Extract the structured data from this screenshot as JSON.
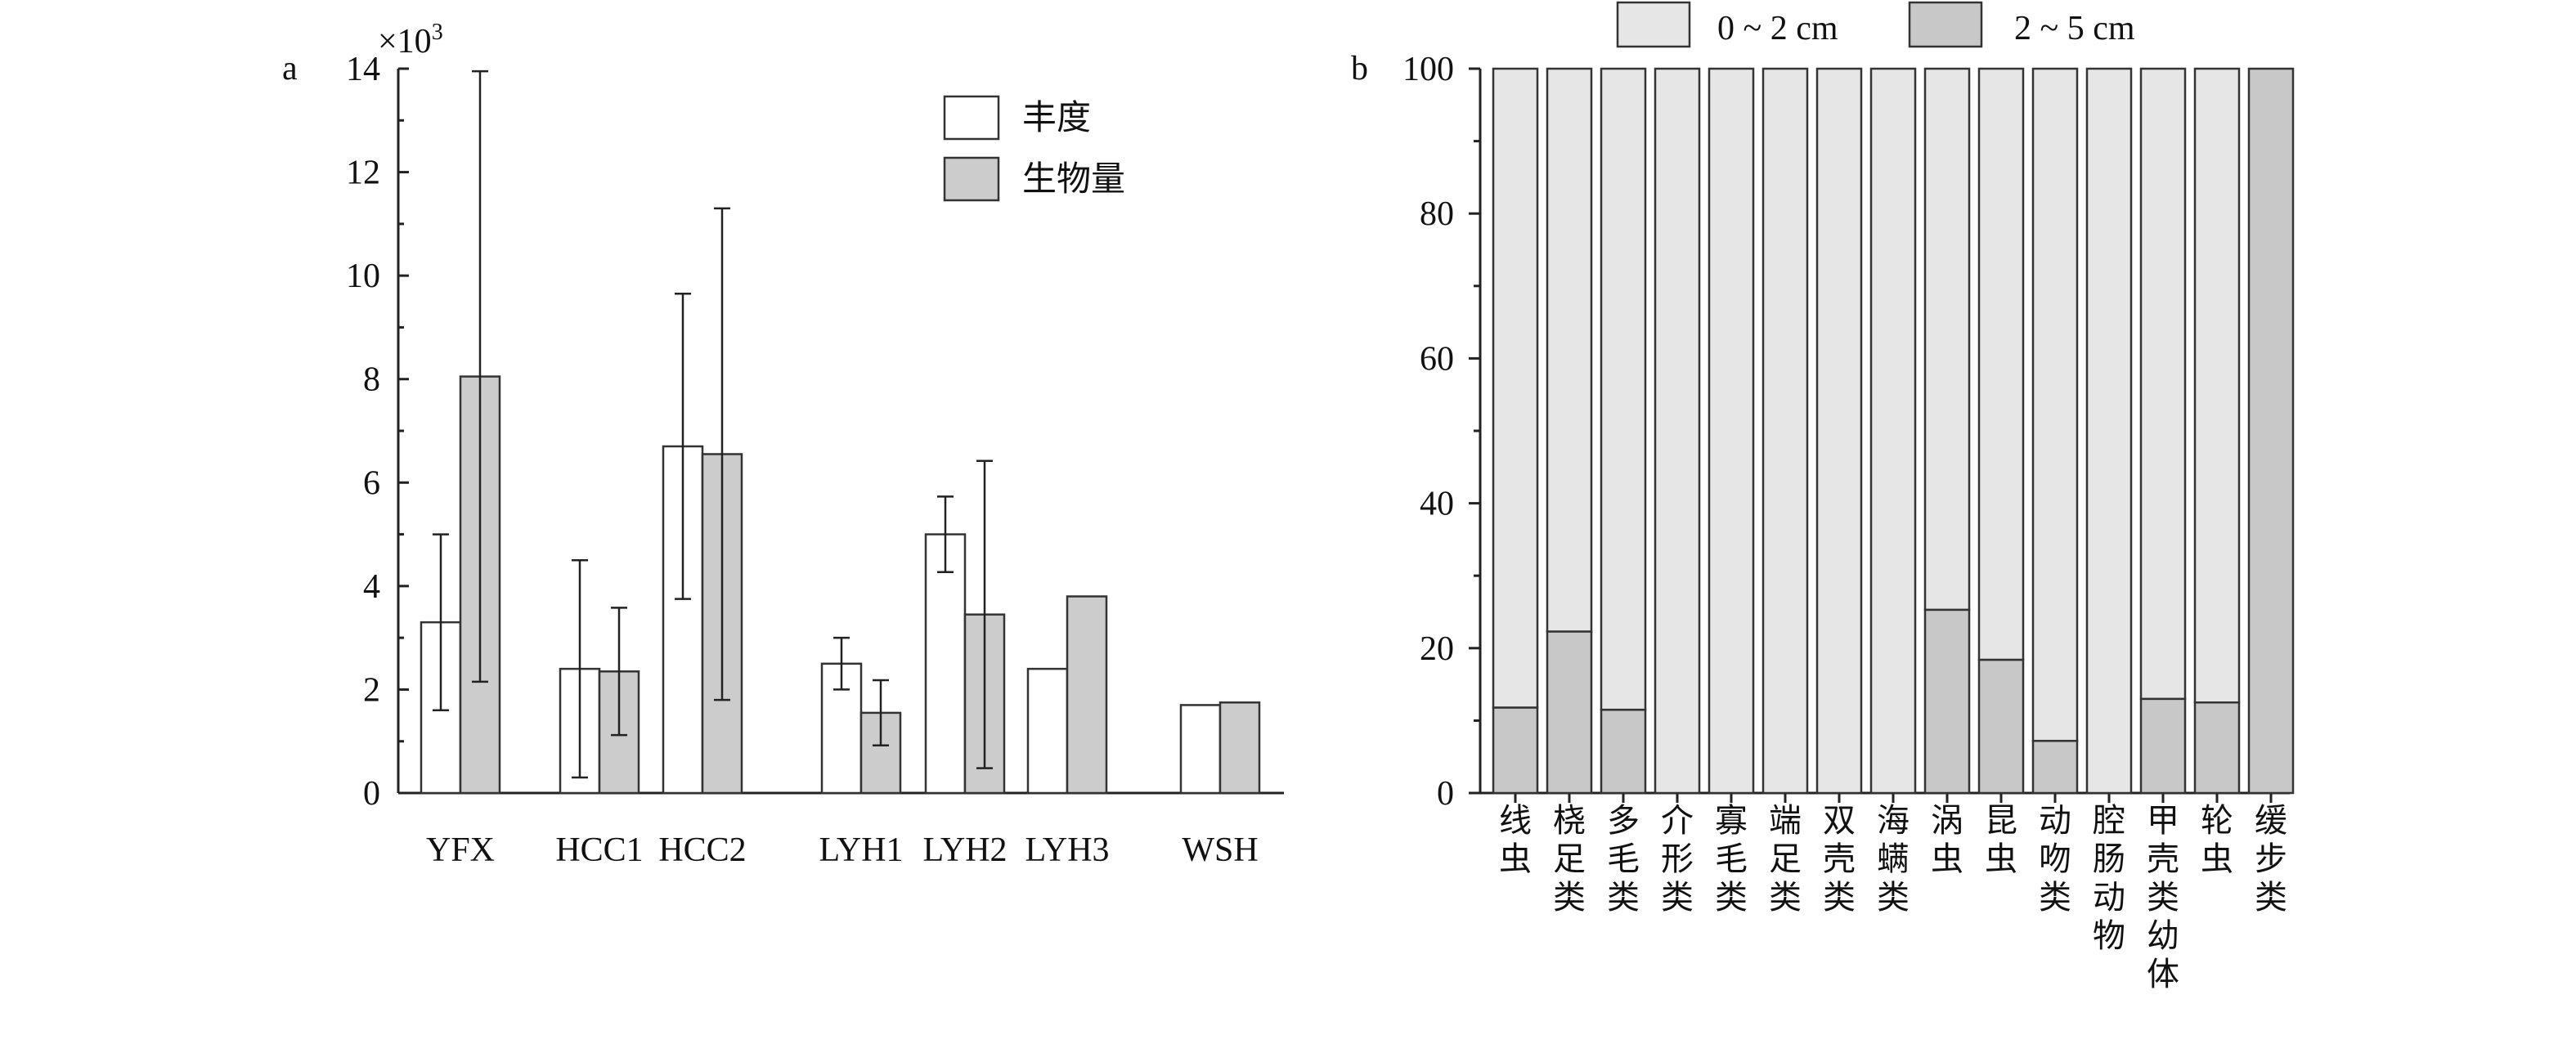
{
  "colors": {
    "abundance": "#ffffff",
    "biomass": "#cccccc",
    "depth_0_2": "#e6e6e6",
    "depth_2_5": "#c8c8c8",
    "axis": "#222222"
  },
  "chart_data": [
    {
      "type": "bar",
      "panel_label": "a",
      "multiplier": "×10",
      "multiplier_exp": "3",
      "categories": [
        "YFX",
        "HCC1",
        "HCC2",
        "LYH1",
        "LYH2",
        "LYH3",
        "WSH"
      ],
      "ylim": [
        0,
        14
      ],
      "yticks": [
        0,
        2,
        4,
        6,
        8,
        10,
        12,
        14
      ],
      "grid": false,
      "legend_position": "top-right",
      "series": [
        {
          "name": "丰度",
          "values": [
            3.3,
            2.4,
            6.7,
            2.5,
            5.0,
            2.4,
            1.7
          ],
          "errors": [
            1.7,
            2.1,
            2.95,
            0.5,
            0.73,
            null,
            null
          ]
        },
        {
          "name": "生物量",
          "values": [
            8.05,
            2.35,
            6.55,
            1.55,
            3.45,
            3.8,
            1.75
          ],
          "errors": [
            5.9,
            1.23,
            4.75,
            0.63,
            2.97,
            null,
            null
          ]
        }
      ]
    },
    {
      "type": "bar",
      "stacked": true,
      "panel_label": "b",
      "categories": [
        "线虫",
        "桡足类",
        "多毛类",
        "介形类",
        "寡毛类",
        "端足类",
        "双壳类",
        "海螨类",
        "涡虫",
        "昆虫",
        "动吻类",
        "腔肠动物",
        "甲壳类幼体",
        "轮虫",
        "缓步类"
      ],
      "ylim": [
        0,
        100
      ],
      "yticks": [
        0,
        20,
        40,
        60,
        80,
        100
      ],
      "grid": false,
      "legend_position": "top",
      "series": [
        {
          "name": "0 ~ 2 cm",
          "values": [
            88.2,
            77.7,
            88.5,
            100,
            100,
            100,
            100,
            100,
            74.7,
            81.6,
            92.8,
            100,
            87.0,
            87.5,
            0
          ]
        },
        {
          "name": "2 ~ 5 cm",
          "values": [
            11.8,
            22.3,
            11.5,
            0,
            0,
            0,
            0,
            0,
            25.3,
            18.4,
            7.2,
            0,
            13.0,
            12.5,
            100
          ]
        }
      ]
    }
  ]
}
